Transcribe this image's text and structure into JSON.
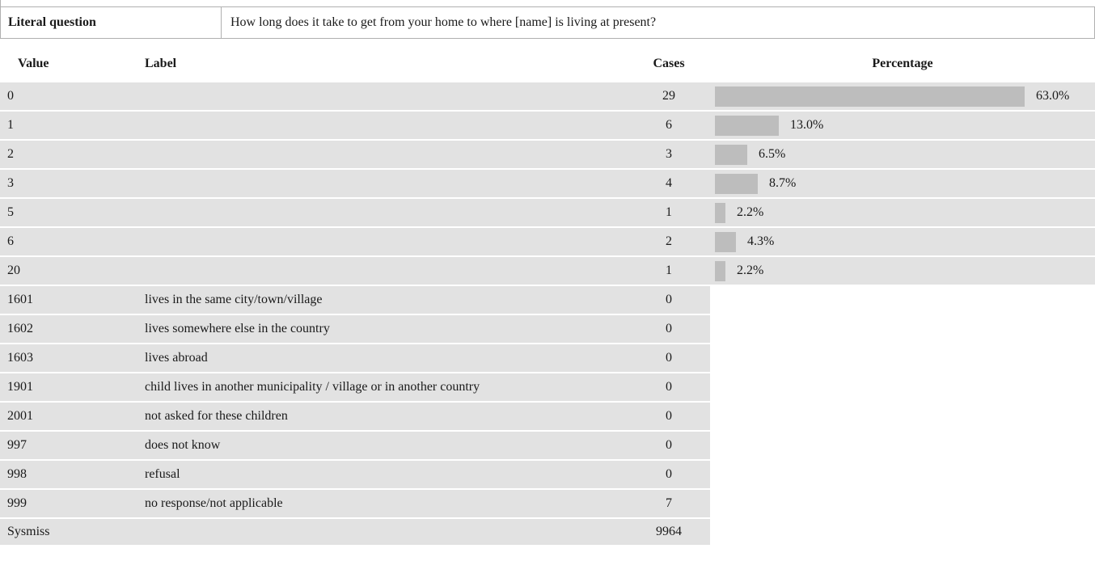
{
  "literal_question": {
    "label": "Literal question",
    "text": "How long does it take to get from your home to where [name] is living at present?"
  },
  "table": {
    "headers": {
      "value": "Value",
      "label": "Label",
      "cases": "Cases",
      "percentage": "Percentage"
    },
    "rows": [
      {
        "value": "0",
        "label": "",
        "cases": "29",
        "percentage": "63.0%",
        "pct_value": 63.0
      },
      {
        "value": "1",
        "label": "",
        "cases": "6",
        "percentage": "13.0%",
        "pct_value": 13.0
      },
      {
        "value": "2",
        "label": "",
        "cases": "3",
        "percentage": "6.5%",
        "pct_value": 6.5
      },
      {
        "value": "3",
        "label": "",
        "cases": "4",
        "percentage": "8.7%",
        "pct_value": 8.7
      },
      {
        "value": "5",
        "label": "",
        "cases": "1",
        "percentage": "2.2%",
        "pct_value": 2.2
      },
      {
        "value": "6",
        "label": "",
        "cases": "2",
        "percentage": "4.3%",
        "pct_value": 4.3
      },
      {
        "value": "20",
        "label": "",
        "cases": "1",
        "percentage": "2.2%",
        "pct_value": 2.2
      },
      {
        "value": "1601",
        "label": "lives in the same city/town/village",
        "cases": "0",
        "percentage": ""
      },
      {
        "value": "1602",
        "label": "lives somewhere else in the country",
        "cases": "0",
        "percentage": ""
      },
      {
        "value": "1603",
        "label": "lives abroad",
        "cases": "0",
        "percentage": ""
      },
      {
        "value": "1901",
        "label": "child lives in another municipality / village or in another country",
        "cases": "0",
        "percentage": ""
      },
      {
        "value": "2001",
        "label": "not asked for these children",
        "cases": "0",
        "percentage": ""
      },
      {
        "value": "997",
        "label": "does not know",
        "cases": "0",
        "percentage": ""
      },
      {
        "value": "998",
        "label": "refusal",
        "cases": "0",
        "percentage": ""
      },
      {
        "value": "999",
        "label": "no response/not applicable",
        "cases": "7",
        "percentage": ""
      },
      {
        "value": "Sysmiss",
        "label": "",
        "cases": "9964",
        "percentage": ""
      }
    ]
  },
  "colors": {
    "row_background": "#e2e2e2",
    "bar": "#bdbdbd",
    "border": "#b0b0b0"
  }
}
